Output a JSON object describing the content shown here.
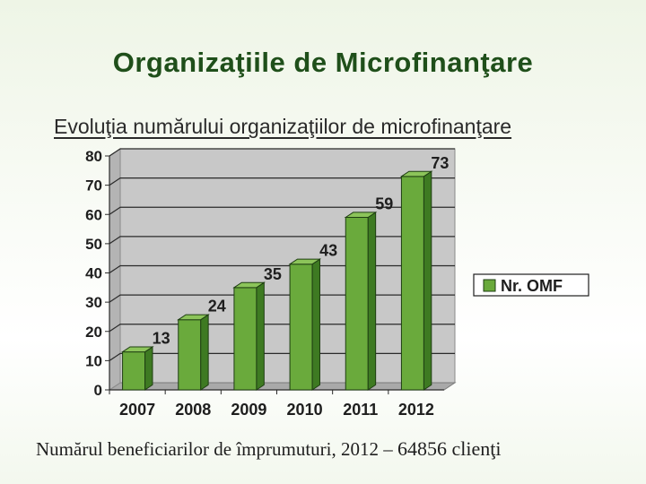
{
  "slide": {
    "title": "Organizaţiile de Microfinanţare",
    "subtitle": "Evoluţia numărului organizaţiilor de microfinanţare",
    "footer_text": "Numărul beneficiarilor de împrumuturi, 2012 – ",
    "footer_value": "64856 clienţi"
  },
  "colors": {
    "title": "#1f4f1a",
    "bar_front": "#6aaa3c",
    "bar_side": "#3e7a22",
    "bar_top": "#8cc45a",
    "outline": "#1e3e12"
  },
  "chart_data": {
    "type": "bar",
    "title": "",
    "categories": [
      "2007",
      "2008",
      "2009",
      "2010",
      "2011",
      "2012"
    ],
    "series": [
      {
        "name": "Nr. OMF",
        "values": [
          13,
          24,
          35,
          43,
          59,
          73
        ]
      }
    ],
    "y_ticks": [
      "0",
      "10",
      "20",
      "30",
      "40",
      "50",
      "60",
      "70",
      "80"
    ],
    "ylim": [
      0,
      80
    ],
    "data_labels": true,
    "grid": true,
    "legend": "right",
    "style": "3d-column"
  }
}
